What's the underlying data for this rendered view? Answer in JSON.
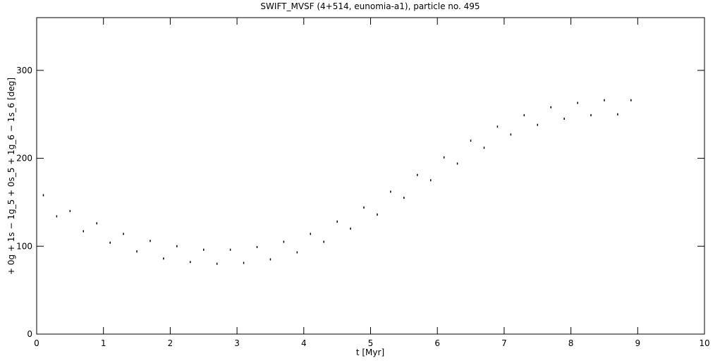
{
  "chart_data": {
    "type": "scatter",
    "title": "SWIFT_MVSF (4+514, eunomia-a1), particle no. 495",
    "x_label": "t [Myr]",
    "y_label": "+ 0g + 1s − 1g_5 + 0s_5 + 1g_6 − 1s_6 [deg]",
    "color": "#000000",
    "x": [
      0.1,
      0.3,
      0.5,
      0.7,
      0.9,
      1.1,
      1.3,
      1.5,
      1.7,
      1.9,
      2.1,
      2.3,
      2.5,
      2.7,
      2.9,
      3.1,
      3.3,
      3.5,
      3.7,
      3.9,
      4.1,
      4.3,
      4.5,
      4.7,
      4.9,
      5.1,
      5.3,
      5.5,
      5.7,
      5.9,
      6.1,
      6.3,
      6.5,
      6.7,
      6.9,
      7.1,
      7.3,
      7.5,
      7.7,
      7.9,
      8.1,
      8.3,
      8.5,
      8.7,
      8.9
    ],
    "y": [
      158,
      134,
      140,
      117,
      126,
      104,
      114,
      94,
      106,
      86,
      100,
      82,
      96,
      80,
      96,
      81,
      99,
      85,
      105,
      93,
      114,
      105,
      128,
      120,
      144,
      136,
      162,
      155,
      181,
      175,
      201,
      194,
      220,
      212,
      236,
      227,
      249,
      238,
      258,
      245,
      263,
      249,
      266,
      250,
      266
    ],
    "xlim": [
      0,
      10
    ],
    "xticks": [
      0,
      1,
      2,
      3,
      4,
      5,
      6,
      7,
      8,
      9,
      10
    ],
    "ylim": [
      0,
      360
    ],
    "yticks": [
      0,
      100,
      200,
      300
    ]
  }
}
